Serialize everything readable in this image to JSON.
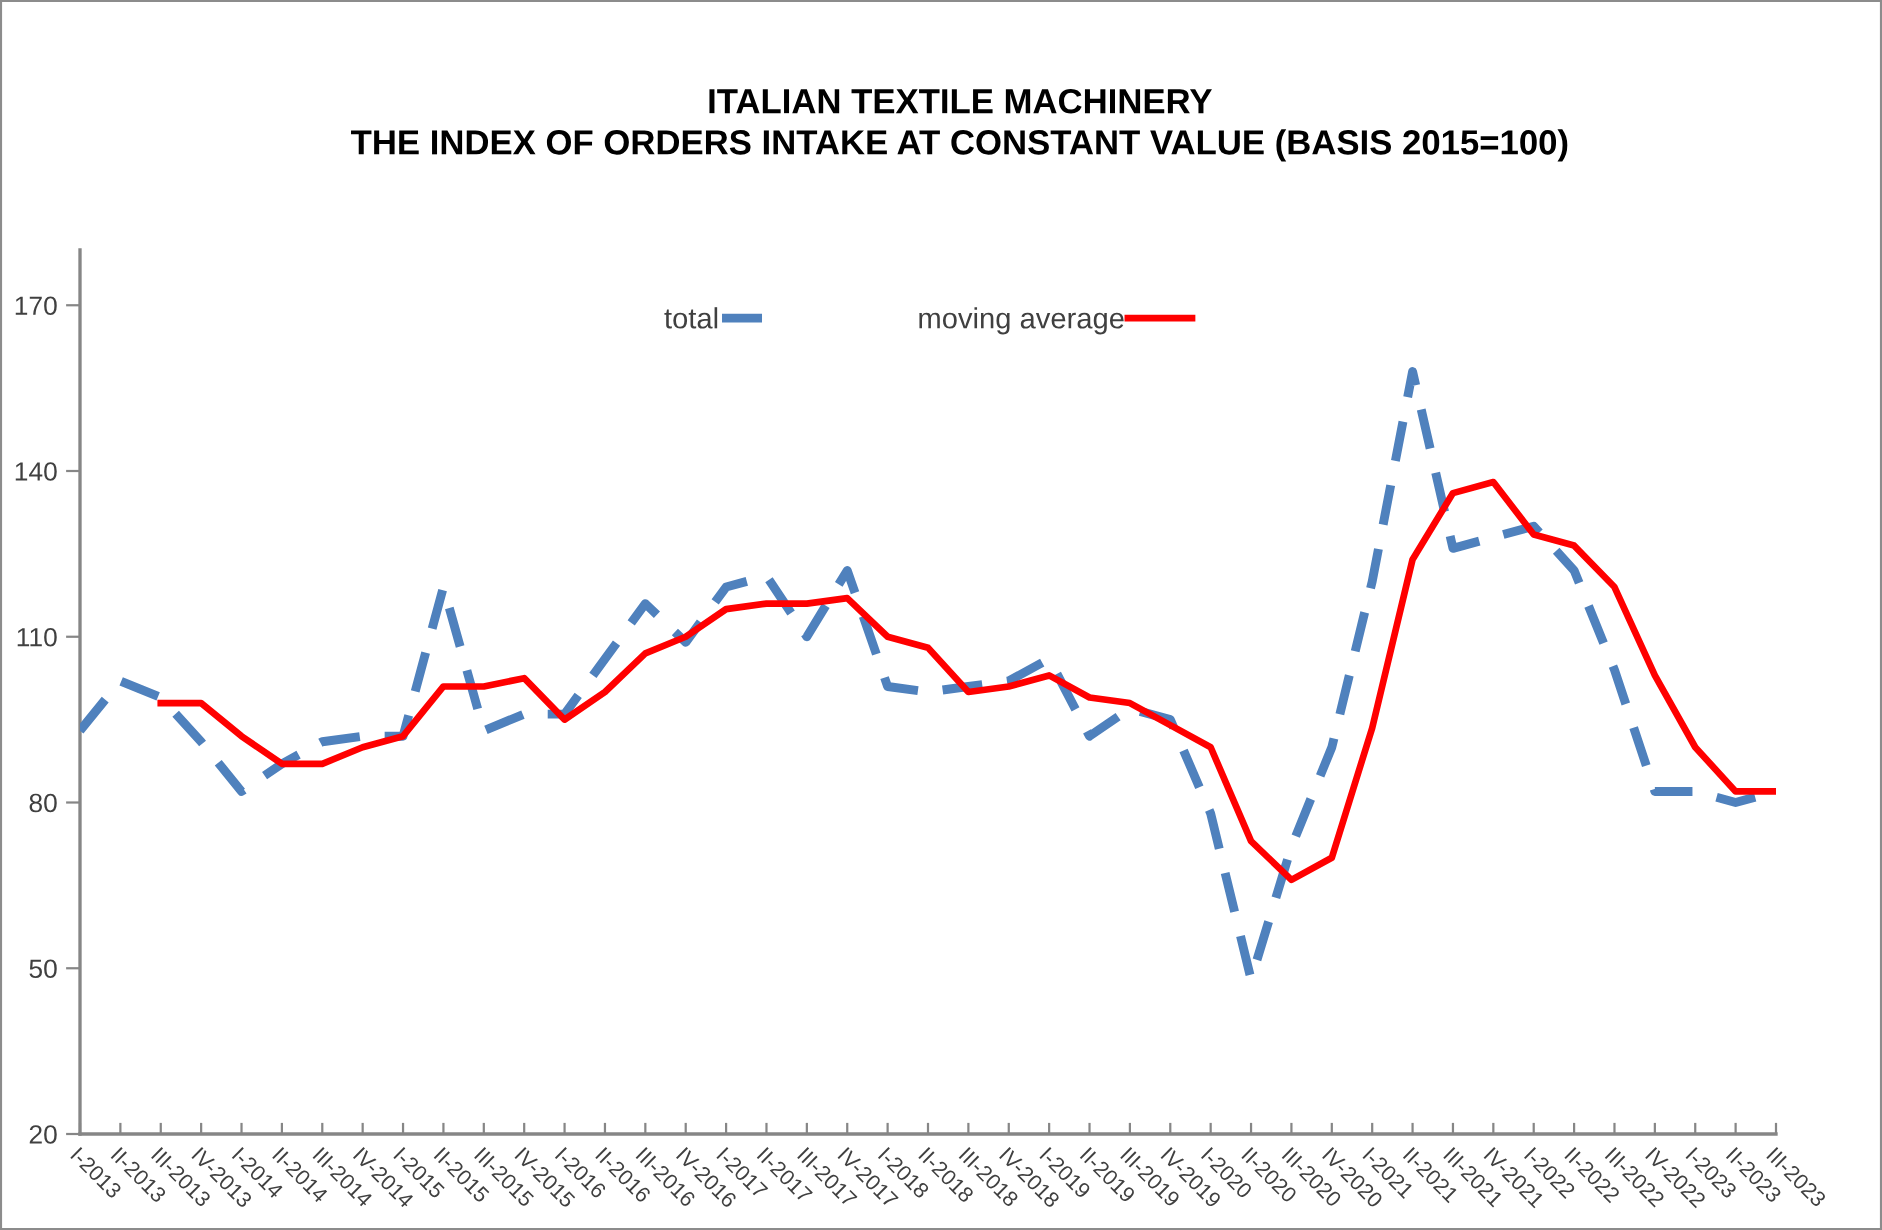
{
  "chart_data": {
    "type": "line",
    "title": "ITALIAN TEXTILE MACHINERY\nTHE INDEX OF ORDERS INTAKE AT CONSTANT VALUE (BASIS 2015=100)",
    "categories": [
      "I-2013",
      "II-2013",
      "III-2013",
      "IV-2013",
      "I-2014",
      "II-2014",
      "III-2014",
      "IV-2014",
      "I-2015",
      "II-2015",
      "III-2015",
      "IV-2015",
      "I-2016",
      "II-2016",
      "III-2016",
      "IV-2016",
      "I-2017",
      "II-2017",
      "III-2017",
      "IV-2017",
      "I-2018",
      "II-2018",
      "III-2018",
      "IV-2018",
      "I-2019",
      "II-2019",
      "III-2019",
      "IV-2019",
      "I-2020",
      "II-2020",
      "III-2020",
      "IV-2020",
      "I-2021",
      "II-2021",
      "III-2021",
      "IV-2021",
      "I-2022",
      "II-2022",
      "III-2022",
      "IV-2022",
      "I-2023",
      "II-2023",
      "III-2023"
    ],
    "series": [
      {
        "name": "total",
        "color": "#4f81bd",
        "line_style": "dashed",
        "values": [
          93,
          102,
          99,
          91,
          82,
          87,
          91,
          92,
          92,
          119,
          93,
          96,
          96,
          106,
          116,
          109,
          119,
          121,
          110,
          122,
          101,
          100,
          101,
          102,
          106,
          92,
          97,
          95,
          78,
          48,
          72,
          90,
          120,
          158,
          126,
          128,
          130,
          122,
          104,
          82,
          82,
          80,
          82
        ]
      },
      {
        "name": "moving average",
        "color": "#ff0000",
        "line_style": "solid",
        "values": [
          null,
          null,
          98,
          98,
          92,
          87,
          87,
          90,
          92,
          101,
          101,
          102.5,
          95,
          100,
          107,
          110,
          115,
          116,
          116,
          117,
          110,
          108,
          100,
          101,
          103,
          99,
          98,
          94,
          90,
          73,
          66,
          70,
          93.5,
          124,
          136,
          138,
          128.5,
          126.5,
          119,
          103,
          90,
          82,
          82
        ]
      }
    ],
    "ylim": [
      20,
      180
    ],
    "yticks": [
      20,
      50,
      80,
      110,
      140,
      170
    ],
    "legend": "top"
  }
}
